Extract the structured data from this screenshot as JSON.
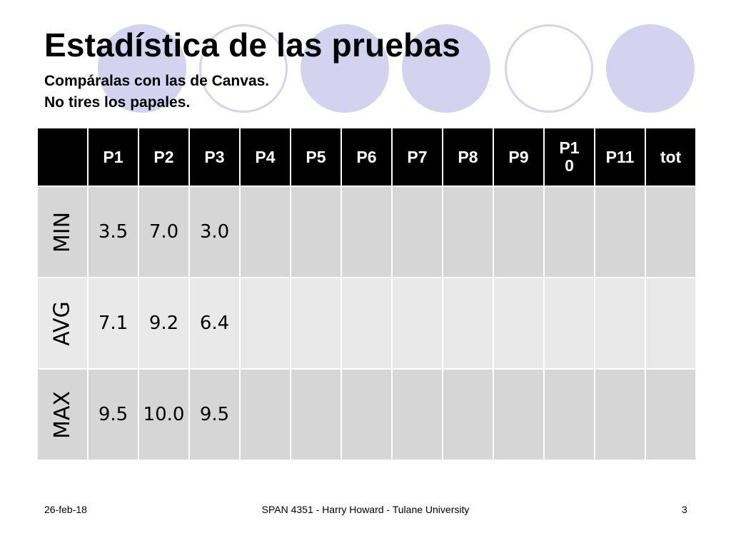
{
  "slide": {
    "title": "Estadística de las pruebas",
    "subtitle_lines": [
      "Compáralas con las de Canvas.",
      "No tires los papales."
    ],
    "colors": {
      "header_bg": "#000000",
      "header_text": "#ffffff",
      "row_dark": "#d6d6d6",
      "row_light": "#e9e9e9",
      "circle": "#d4d2ee"
    }
  },
  "table": {
    "headers": [
      "",
      "P1",
      "P2",
      "P3",
      "P4",
      "P5",
      "P6",
      "P7",
      "P8",
      "P9",
      "P10",
      "P11",
      "tot"
    ],
    "rows": [
      {
        "label": "MIN",
        "values": [
          "3.5",
          "7.0",
          "3.0",
          "",
          "",
          "",
          "",
          "",
          "",
          "",
          "",
          ""
        ]
      },
      {
        "label": "AVG",
        "values": [
          "7.1",
          "9.2",
          "6.4",
          "",
          "",
          "",
          "",
          "",
          "",
          "",
          "",
          ""
        ]
      },
      {
        "label": "MAX",
        "values": [
          "9.5",
          "10.0",
          "9.5",
          "",
          "",
          "",
          "",
          "",
          "",
          "",
          "",
          ""
        ]
      }
    ]
  },
  "footer": {
    "date": "26-feb-18",
    "course": "SPAN 4351 - Harry Howard - Tulane University",
    "page": "3"
  }
}
